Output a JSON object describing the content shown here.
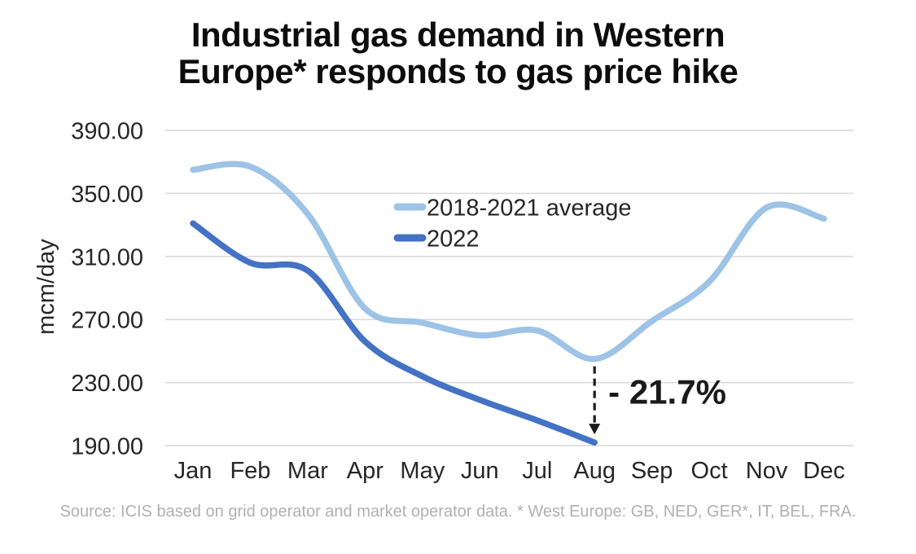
{
  "title": {
    "line1": "Industrial gas demand in Western",
    "line2": "Europe* responds to gas price hike"
  },
  "source_note": "Source: ICIS based on grid operator and market operator data. * West Europe: GB, NED, GER*, IT, BEL, FRA.",
  "colors": {
    "grid": "#D9D9D9",
    "axis_text": "#262626",
    "title_text": "#0D0D0D",
    "annotation_text": "#1A1A1A",
    "source_text": "#B0B0B0"
  },
  "chart_data": {
    "type": "line",
    "title": "Industrial gas demand in Western Europe* responds to gas price hike",
    "xlabel": "",
    "ylabel": "mcm/day",
    "categories": [
      "Jan",
      "Feb",
      "Mar",
      "Apr",
      "May",
      "Jun",
      "Jul",
      "Aug",
      "Sep",
      "Oct",
      "Nov",
      "Dec"
    ],
    "y_ticks": [
      "390.00",
      "350.00",
      "310.00",
      "270.00",
      "230.00",
      "190.00"
    ],
    "ylim": [
      190,
      390
    ],
    "grid": true,
    "line_style": "smooth",
    "legend_position": "inside-upper-middle",
    "series": [
      {
        "name": "2018-2021 average",
        "color": "#9DC3E6",
        "values": [
          365,
          367,
          337,
          277,
          268,
          260,
          263,
          245,
          269,
          294,
          341,
          334
        ]
      },
      {
        "name": "2022",
        "color": "#4472C4",
        "values": [
          331,
          306,
          301,
          256,
          234,
          219,
          206,
          192
        ]
      }
    ],
    "annotation": {
      "text": "- 21.7%",
      "at_month": "Aug",
      "arrow": "dashed-down"
    }
  }
}
